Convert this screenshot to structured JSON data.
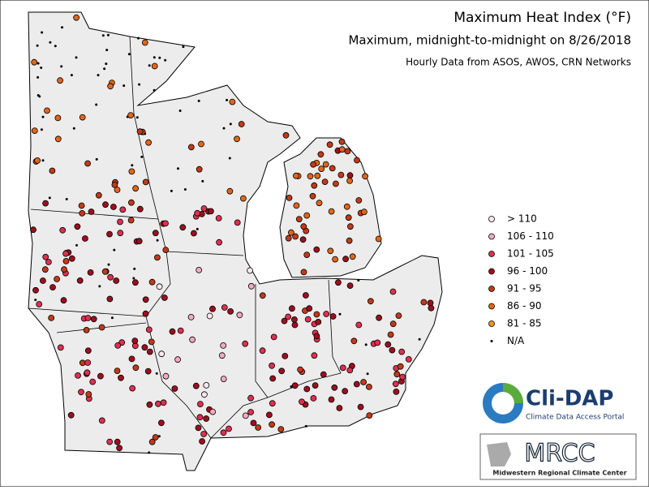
{
  "header": {
    "title": "Maximum Heat Index (°F)",
    "subtitle": "Maximum, midnight-to-midnight on 8/26/2018",
    "source": "Hourly Data from ASOS, AWOS, CRN Networks"
  },
  "legend": {
    "entries": [
      {
        "label": "> 110",
        "color": "#fde6ee"
      },
      {
        "label": "106 - 110",
        "color": "#f7a9c0"
      },
      {
        "label": "101 - 105",
        "color": "#e0304f"
      },
      {
        "label": "96 - 100",
        "color": "#9e0f1e"
      },
      {
        "label": "91 - 95",
        "color": "#c23a18"
      },
      {
        "label": "86 - 90",
        "color": "#e2661a"
      },
      {
        "label": "81 - 85",
        "color": "#eb9a20"
      },
      {
        "label": "N/A",
        "color": "#000000"
      }
    ]
  },
  "logos": {
    "clidap": {
      "name": "Cli-DAP",
      "tagline": "Climate Data Access Portal"
    },
    "mrcc": {
      "name": "MRCC",
      "tagline": "Midwestern Regional Climate Center"
    }
  }
}
